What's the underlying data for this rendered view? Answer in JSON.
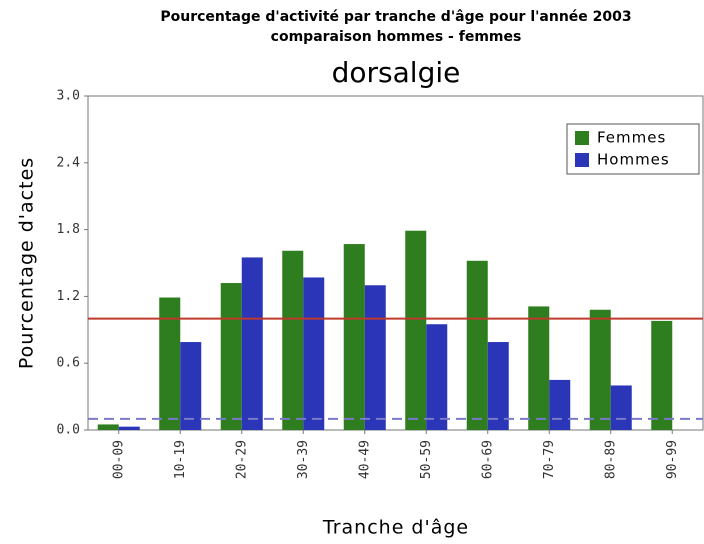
{
  "chart_data": {
    "type": "bar",
    "title": "Pourcentage d'activité par tranche d'âge pour l'année 2003",
    "subtitle": "comparaison hommes - femmes",
    "chart_title": "dorsalgie",
    "y_label": "Pourcentage d'actes",
    "x_label": "Tranche d'âge",
    "categories": [
      "00-09",
      "10-19",
      "20-29",
      "30-39",
      "40-49",
      "50-59",
      "60-69",
      "70-79",
      "80-89",
      "90-99"
    ],
    "series": [
      {
        "name": "Femmes",
        "color": "#2e7d1e",
        "values": [
          0.05,
          1.19,
          1.32,
          1.61,
          1.67,
          1.79,
          1.52,
          1.11,
          1.08,
          0.98
        ]
      },
      {
        "name": "Hommes",
        "color": "#2a35b8",
        "values": [
          0.03,
          0.79,
          1.55,
          1.37,
          1.3,
          0.95,
          0.79,
          0.45,
          0.4,
          null
        ]
      }
    ],
    "reference_lines": [
      {
        "value": 1.0,
        "color": "#c0392b",
        "dash": false
      },
      {
        "value": 0.1,
        "color": "#7a7ac8",
        "dash": true
      }
    ],
    "ylim": [
      0,
      3
    ],
    "yticks": [
      {
        "value": 0,
        "label": "0.0"
      },
      0.6,
      1.2,
      1.8,
      2.4,
      {
        "value": 3,
        "label": "3.0"
      }
    ],
    "legend": "top-right"
  }
}
